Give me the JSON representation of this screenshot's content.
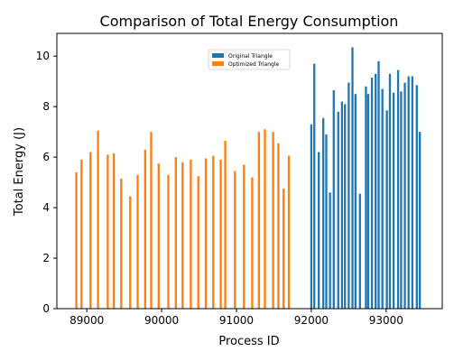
{
  "chart_data": {
    "type": "bar",
    "title": "Comparison of Total Energy Consumption",
    "xlabel": "Process ID",
    "ylabel": "Total Energy (J)",
    "xlim": [
      88600,
      93750
    ],
    "ylim": [
      0,
      10.9
    ],
    "xticks": [
      89000,
      90000,
      91000,
      92000,
      93000
    ],
    "xtick_labels": [
      "89000",
      "90000",
      "91000",
      "92000",
      "93000"
    ],
    "yticks": [
      0,
      2,
      4,
      6,
      8,
      10
    ],
    "ytick_labels": [
      "0",
      "2",
      "4",
      "6",
      "8",
      "10"
    ],
    "bar_width": 28,
    "legend_placement": "upper center",
    "grid": false,
    "series": [
      {
        "name": "Original Triangle",
        "color": "#1f77b4",
        "x": [
          92000,
          92040,
          92100,
          92160,
          92200,
          92250,
          92300,
          92360,
          92410,
          92450,
          92500,
          92550,
          92590,
          92650,
          92730,
          92760,
          92810,
          92860,
          92900,
          92950,
          93010,
          93050,
          93100,
          93160,
          93200,
          93250,
          93300,
          93350,
          93410,
          93450
        ],
        "values": [
          7.3,
          9.7,
          6.2,
          7.55,
          6.9,
          4.6,
          8.65,
          7.8,
          8.2,
          8.1,
          8.95,
          10.35,
          8.5,
          4.55,
          8.8,
          8.5,
          9.15,
          9.3,
          9.8,
          8.7,
          7.85,
          9.3,
          8.55,
          9.45,
          8.6,
          8.95,
          9.2,
          9.2,
          8.85,
          7.0
        ]
      },
      {
        "name": "Optimized Triangle",
        "color": "#ff7f0e",
        "x": [
          88860,
          88930,
          89050,
          89150,
          89280,
          89360,
          89460,
          89580,
          89680,
          89780,
          89860,
          89960,
          90090,
          90190,
          90280,
          90390,
          90490,
          90590,
          90690,
          90790,
          90850,
          90980,
          91100,
          91210,
          91300,
          91380,
          91490,
          91560,
          91630,
          91700
        ],
        "values": [
          5.4,
          5.9,
          6.2,
          7.05,
          6.1,
          6.15,
          5.15,
          4.45,
          5.3,
          6.3,
          7.0,
          5.75,
          5.3,
          6.0,
          5.8,
          5.9,
          5.25,
          5.95,
          6.05,
          5.9,
          6.65,
          5.45,
          5.7,
          5.2,
          7.0,
          7.1,
          7.0,
          6.55,
          4.75,
          6.05
        ]
      }
    ]
  }
}
